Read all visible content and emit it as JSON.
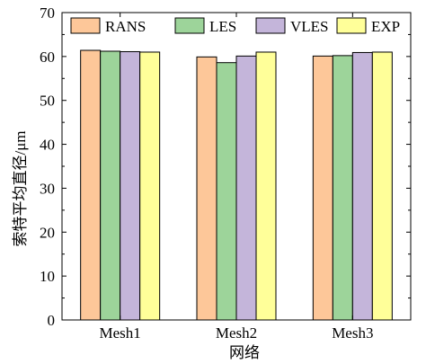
{
  "chart_data": {
    "type": "bar",
    "title": "",
    "xlabel": "网络",
    "ylabel": "索特平均直径/μm",
    "categories": [
      "Mesh1",
      "Mesh2",
      "Mesh3"
    ],
    "ylim": [
      0,
      70
    ],
    "yticks": [
      "0",
      "10",
      "20",
      "30",
      "40",
      "50",
      "60",
      "70"
    ],
    "grid": false,
    "legend_position": "top",
    "series": [
      {
        "name": "RANS",
        "color": "#FDC799",
        "values": [
          61.4,
          59.9,
          60.1
        ]
      },
      {
        "name": "LES",
        "color": "#9DD49A",
        "values": [
          61.2,
          58.6,
          60.2
        ]
      },
      {
        "name": "VLES",
        "color": "#C4B5DA",
        "values": [
          61.1,
          60.1,
          60.9
        ]
      },
      {
        "name": "EXP",
        "color": "#FFFF99",
        "values": [
          61.0,
          61.0,
          61.0
        ]
      }
    ]
  }
}
